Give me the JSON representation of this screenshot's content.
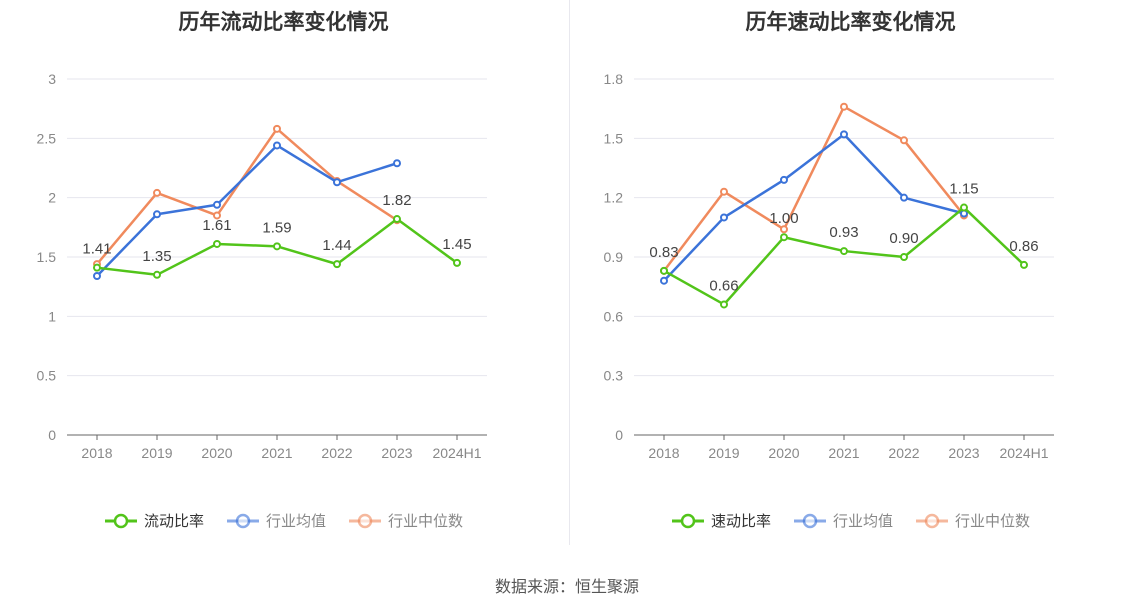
{
  "colors": {
    "green": "#52c41a",
    "blue": "#3b73d9",
    "orange": "#f08a5d"
  },
  "source": "数据来源：恒生聚源",
  "chart_data": [
    {
      "type": "line",
      "title": "历年流动比率变化情况",
      "categories": [
        "2018",
        "2019",
        "2020",
        "2021",
        "2022",
        "2023",
        "2024H1"
      ],
      "ylim": [
        0,
        3
      ],
      "yticks": [
        "0",
        "0.5",
        "1",
        "1.5",
        "2",
        "2.5",
        "3"
      ],
      "grid": true,
      "legend_position": "bottom",
      "series": [
        {
          "name": "流动比率",
          "color": "green",
          "values": [
            1.41,
            1.35,
            1.61,
            1.59,
            1.44,
            1.82,
            1.45
          ],
          "labels": [
            "1.41",
            "1.35",
            "1.61",
            "1.59",
            "1.44",
            "1.82",
            "1.45"
          ]
        },
        {
          "name": "行业均值",
          "color": "blue",
          "values": [
            1.34,
            1.86,
            1.94,
            2.44,
            2.13,
            2.29,
            null
          ]
        },
        {
          "name": "行业中位数",
          "color": "orange",
          "values": [
            1.44,
            2.04,
            1.85,
            2.58,
            2.14,
            1.81,
            null
          ]
        }
      ]
    },
    {
      "type": "line",
      "title": "历年速动比率变化情况",
      "categories": [
        "2018",
        "2019",
        "2020",
        "2021",
        "2022",
        "2023",
        "2024H1"
      ],
      "ylim": [
        0,
        1.8
      ],
      "yticks": [
        "0",
        "0.3",
        "0.6",
        "0.9",
        "1.2",
        "1.5",
        "1.8"
      ],
      "grid": true,
      "legend_position": "bottom",
      "series": [
        {
          "name": "速动比率",
          "color": "green",
          "values": [
            0.83,
            0.66,
            1.0,
            0.93,
            0.9,
            1.15,
            0.86
          ],
          "labels": [
            "0.83",
            "0.66",
            "1.00",
            "0.93",
            "0.90",
            "1.15",
            "0.86"
          ]
        },
        {
          "name": "行业均值",
          "color": "blue",
          "values": [
            0.78,
            1.1,
            1.29,
            1.52,
            1.2,
            1.12,
            null
          ]
        },
        {
          "name": "行业中位数",
          "color": "orange",
          "values": [
            0.83,
            1.23,
            1.04,
            1.66,
            1.49,
            1.11,
            null
          ]
        }
      ]
    }
  ]
}
